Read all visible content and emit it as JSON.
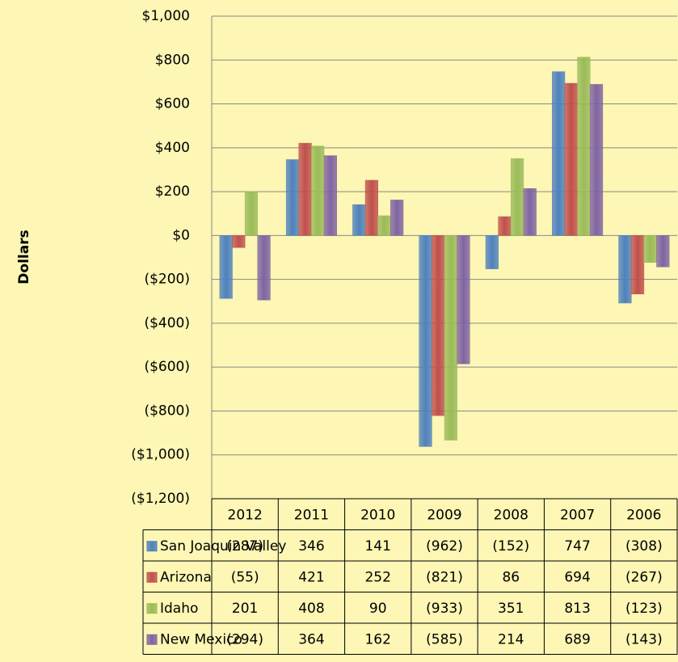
{
  "chart_data": {
    "type": "bar",
    "y_label": "Dollars",
    "categories": [
      "2012",
      "2011",
      "2010",
      "2009",
      "2008",
      "2007",
      "2006"
    ],
    "series": [
      {
        "name": "San Joaquin Valley",
        "color": "#4f81bd",
        "values": [
          -287,
          346,
          141,
          -962,
          -152,
          747,
          -308
        ],
        "value_labels": [
          "(287)",
          "346",
          "141",
          "(962)",
          "(152)",
          "747",
          "(308)"
        ]
      },
      {
        "name": "Arizona",
        "color": "#c0504d",
        "values": [
          -55,
          421,
          252,
          -821,
          86,
          694,
          -267
        ],
        "value_labels": [
          "(55)",
          "421",
          "252",
          "(821)",
          "86",
          "694",
          "(267)"
        ]
      },
      {
        "name": "Idaho",
        "color": "#9bbb59",
        "values": [
          201,
          408,
          90,
          -933,
          351,
          813,
          -123
        ],
        "value_labels": [
          "201",
          "408",
          "90",
          "(933)",
          "351",
          "813",
          "(123)"
        ]
      },
      {
        "name": "New Mexico",
        "color": "#8064a2",
        "values": [
          -294,
          364,
          162,
          -585,
          214,
          689,
          -143
        ],
        "value_labels": [
          "(294)",
          "364",
          "162",
          "(585)",
          "214",
          "689",
          "(143)"
        ]
      }
    ],
    "ylim": [
      -1200,
      1000
    ],
    "yticks": [
      {
        "value": -1200,
        "label": "($1,200)"
      },
      {
        "value": -1000,
        "label": "($1,000)"
      },
      {
        "value": -800,
        "label": "($800)"
      },
      {
        "value": -600,
        "label": "($600)"
      },
      {
        "value": -400,
        "label": "($400)"
      },
      {
        "value": -200,
        "label": "($200)"
      },
      {
        "value": 0,
        "label": "$0"
      },
      {
        "value": 200,
        "label": "$200"
      },
      {
        "value": 400,
        "label": "$400"
      },
      {
        "value": 600,
        "label": "$600"
      },
      {
        "value": 800,
        "label": "$800"
      },
      {
        "value": 1000,
        "label": "$1,000"
      }
    ],
    "negative_tick_color": "#ff0000",
    "grid": true,
    "data_table": true
  }
}
